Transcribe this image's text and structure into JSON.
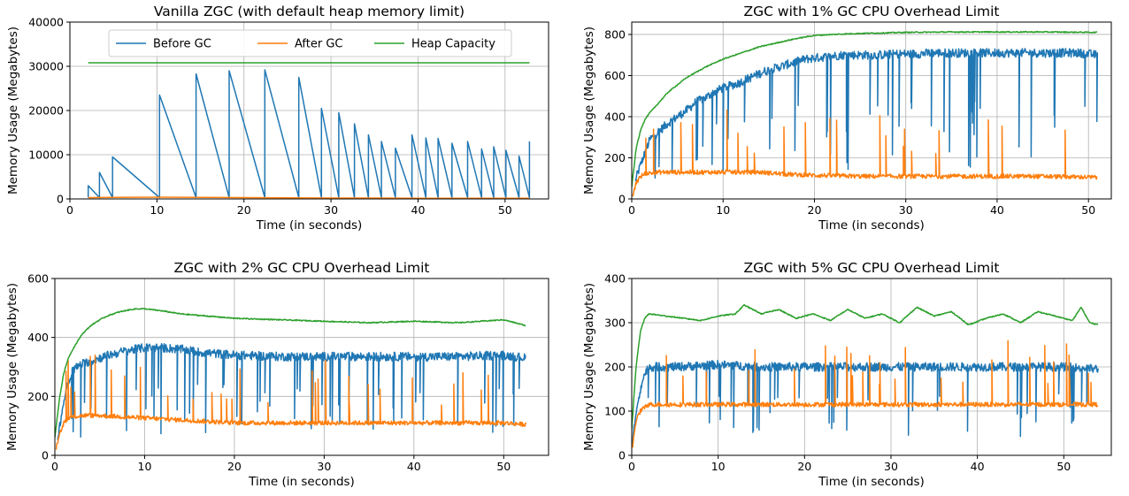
{
  "colors": {
    "before_gc": "#1f77b4",
    "after_gc": "#ff7f0e",
    "heap_capacity": "#2ca02c"
  },
  "chart_data": [
    {
      "type": "line",
      "title": "Vanilla ZGC (with default heap memory limit)",
      "xlabel": "Time (in seconds)",
      "ylabel": "Memory Usage (Megabytes)",
      "xlim": [
        0,
        55
      ],
      "ylim": [
        0,
        40000
      ],
      "xticks": [
        0,
        10,
        20,
        30,
        40,
        50
      ],
      "yticks": [
        0,
        10000,
        20000,
        30000,
        40000
      ],
      "grid": true,
      "legend": {
        "position": "top",
        "entries": [
          "Before GC",
          "After GC",
          "Heap Capacity"
        ]
      },
      "series": [
        {
          "name": "Before GC",
          "color": "#1f77b4",
          "sawtooth": true,
          "x": [
            2.1,
            3.4,
            4.9,
            10.3,
            14.5,
            18.3,
            22.4,
            26.3,
            28.9,
            30.9,
            32.7,
            34.3,
            35.8,
            37.4,
            39.3,
            40.9,
            42.3,
            43.9,
            45.7,
            47.3,
            48.7,
            50.1,
            51.6,
            52.8
          ],
          "y": [
            3000,
            6000,
            9500,
            23500,
            28300,
            29000,
            29200,
            27500,
            20500,
            19500,
            17000,
            14500,
            13000,
            11500,
            14500,
            13800,
            13700,
            12600,
            13000,
            11300,
            11800,
            11000,
            9700,
            13000
          ]
        },
        {
          "name": "After GC",
          "color": "#ff7f0e",
          "x": [
            2.1,
            5,
            10,
            15,
            20,
            25,
            30,
            35,
            40,
            45,
            50,
            52.8
          ],
          "y": [
            300,
            350,
            400,
            350,
            300,
            250,
            200,
            200,
            150,
            150,
            150,
            150
          ]
        },
        {
          "name": "Heap Capacity",
          "color": "#2ca02c",
          "x": [
            2.1,
            52.8
          ],
          "y": [
            30800,
            30800
          ]
        }
      ]
    },
    {
      "type": "line",
      "title": "ZGC with 1% GC CPU Overhead Limit",
      "xlabel": "Time (in seconds)",
      "ylabel": "Memory Usage (Megabytes)",
      "xlim": [
        0,
        52.5
      ],
      "ylim": [
        0,
        860
      ],
      "xticks": [
        0,
        10,
        20,
        30,
        40,
        50
      ],
      "yticks": [
        0,
        200,
        400,
        600,
        800
      ],
      "grid": true,
      "series": [
        {
          "name": "Before GC",
          "color": "#1f77b4",
          "sawtooth": true,
          "x": [
            0.4,
            1.0,
            1.5,
            2.0,
            3.0,
            4.0,
            5.0,
            6.0,
            7.0,
            8.0,
            9.0,
            10.0,
            11.5,
            13.0,
            14.5,
            16.0,
            17.5,
            19.0,
            21.0,
            23.0,
            25.0,
            27.0,
            29.0,
            31.0,
            33.0,
            35.0,
            37.0,
            39.0,
            41.0,
            43.0,
            45.0,
            47.0,
            49.0,
            51.0
          ],
          "y": [
            90,
            170,
            230,
            290,
            330,
            370,
            400,
            430,
            470,
            490,
            520,
            540,
            560,
            590,
            620,
            640,
            660,
            680,
            690,
            700,
            700,
            700,
            705,
            705,
            710,
            710,
            710,
            710,
            710,
            710,
            710,
            710,
            710,
            700
          ]
        },
        {
          "name": "After GC",
          "color": "#ff7f0e",
          "sawtooth": false,
          "x": [
            0.1,
            0.5,
            1.0,
            1.5,
            2.0,
            3.0,
            5.0,
            8.0,
            11.0,
            14.0,
            17.0,
            20.0,
            25.0,
            30.0,
            35.0,
            40.0,
            45.0,
            51.0
          ],
          "y": [
            20,
            80,
            110,
            125,
            125,
            130,
            130,
            130,
            130,
            130,
            120,
            115,
            110,
            110,
            110,
            110,
            110,
            105
          ]
        },
        {
          "name": "Heap Capacity",
          "color": "#2ca02c",
          "x": [
            0,
            0.5,
            1.0,
            1.5,
            2.0,
            3.0,
            4.0,
            6.0,
            8.0,
            10.0,
            12.0,
            14.0,
            16.0,
            18.0,
            20.0,
            22.0,
            25.0,
            30.0,
            35.0,
            40.0,
            45.0,
            51.0
          ],
          "y": [
            60,
            250,
            340,
            390,
            420,
            470,
            520,
            590,
            640,
            680,
            710,
            740,
            760,
            780,
            795,
            800,
            805,
            810,
            812,
            812,
            812,
            810
          ]
        }
      ]
    },
    {
      "type": "line",
      "title": "ZGC with 2% GC CPU Overhead Limit",
      "xlabel": "Time (in seconds)",
      "ylabel": "Memory Usage (Megabytes)",
      "xlim": [
        0,
        55
      ],
      "ylim": [
        0,
        600
      ],
      "xticks": [
        0,
        10,
        20,
        30,
        40,
        50
      ],
      "yticks": [
        0,
        200,
        400,
        600
      ],
      "grid": true,
      "series": [
        {
          "name": "Before GC",
          "color": "#1f77b4",
          "sawtooth": true,
          "x": [
            0.3,
            0.8,
            1.3,
            2.0,
            3.0,
            4.0,
            5.0,
            6.0,
            8.0,
            10.0,
            12.0,
            14.0,
            16.0,
            18.0,
            20.0,
            25.0,
            30.0,
            35.0,
            40.0,
            45.0,
            50.0,
            52.5
          ],
          "y": [
            60,
            150,
            230,
            290,
            310,
            320,
            330,
            340,
            355,
            365,
            365,
            360,
            350,
            345,
            340,
            335,
            335,
            335,
            335,
            335,
            340,
            330
          ]
        },
        {
          "name": "After GC",
          "color": "#ff7f0e",
          "sawtooth": false,
          "x": [
            0.1,
            0.5,
            1.0,
            1.5,
            2.0,
            3.0,
            5.0,
            8.0,
            11.0,
            14.0,
            17.0,
            20.0,
            25.0,
            30.0,
            35.0,
            40.0,
            45.0,
            50.0,
            52.5
          ],
          "y": [
            20,
            70,
            110,
            125,
            130,
            135,
            135,
            130,
            125,
            120,
            115,
            110,
            110,
            110,
            110,
            110,
            110,
            110,
            105
          ]
        },
        {
          "name": "Heap Capacity",
          "color": "#2ca02c",
          "x": [
            0,
            0.5,
            1.0,
            1.5,
            2.0,
            3.0,
            4.0,
            5.0,
            6.0,
            7.0,
            8.0,
            9.0,
            10.0,
            12.0,
            14.0,
            16.0,
            20.0,
            25.0,
            30.0,
            35.0,
            40.0,
            45.0,
            50.0,
            52.5
          ],
          "y": [
            60,
            190,
            280,
            330,
            360,
            410,
            440,
            460,
            475,
            485,
            492,
            497,
            497,
            490,
            480,
            475,
            465,
            460,
            455,
            450,
            455,
            450,
            460,
            440
          ]
        }
      ]
    },
    {
      "type": "line",
      "title": "ZGC with 5% GC CPU Overhead Limit",
      "xlabel": "Time (in seconds)",
      "ylabel": "Memory Usage (Megabytes)",
      "xlim": [
        0,
        55.5
      ],
      "ylim": [
        0,
        400
      ],
      "xticks": [
        0,
        10,
        20,
        30,
        40,
        50
      ],
      "yticks": [
        0,
        100,
        200,
        300,
        400
      ],
      "grid": true,
      "series": [
        {
          "name": "Before GC",
          "color": "#1f77b4",
          "sawtooth": false,
          "x": [
            0.1,
            0.5,
            1.0,
            1.5,
            2.0,
            5.0,
            10.0,
            15.0,
            20.0,
            25.0,
            30.0,
            35.0,
            40.0,
            45.0,
            50.0,
            54.0
          ],
          "y": [
            30,
            100,
            150,
            185,
            200,
            200,
            205,
            200,
            200,
            200,
            200,
            200,
            200,
            200,
            200,
            195
          ]
        },
        {
          "name": "After GC",
          "color": "#ff7f0e",
          "sawtooth": false,
          "x": [
            0.1,
            0.5,
            1.0,
            1.5,
            2.0,
            5.0,
            10.0,
            15.0,
            20.0,
            25.0,
            30.0,
            35.0,
            40.0,
            45.0,
            50.0,
            54.0
          ],
          "y": [
            20,
            80,
            100,
            110,
            115,
            115,
            115,
            115,
            115,
            115,
            115,
            115,
            115,
            115,
            115,
            115
          ]
        },
        {
          "name": "Heap Capacity",
          "color": "#2ca02c",
          "x": [
            0,
            0.5,
            1.0,
            1.5,
            2.0,
            4.0,
            6.0,
            8.0,
            10.0,
            12.0,
            13.0,
            15.0,
            17.0,
            19.0,
            21.0,
            23.0,
            25.0,
            27.0,
            29.0,
            31.0,
            33.0,
            35.0,
            37.0,
            39.0,
            41.0,
            43.0,
            45.0,
            47.0,
            49.0,
            51.0,
            52.0,
            53.0,
            54.0
          ],
          "y": [
            60,
            200,
            280,
            310,
            320,
            315,
            310,
            305,
            315,
            320,
            340,
            320,
            330,
            310,
            320,
            305,
            330,
            310,
            320,
            300,
            335,
            315,
            325,
            295,
            310,
            320,
            300,
            325,
            315,
            305,
            335,
            300,
            295
          ]
        }
      ]
    }
  ]
}
